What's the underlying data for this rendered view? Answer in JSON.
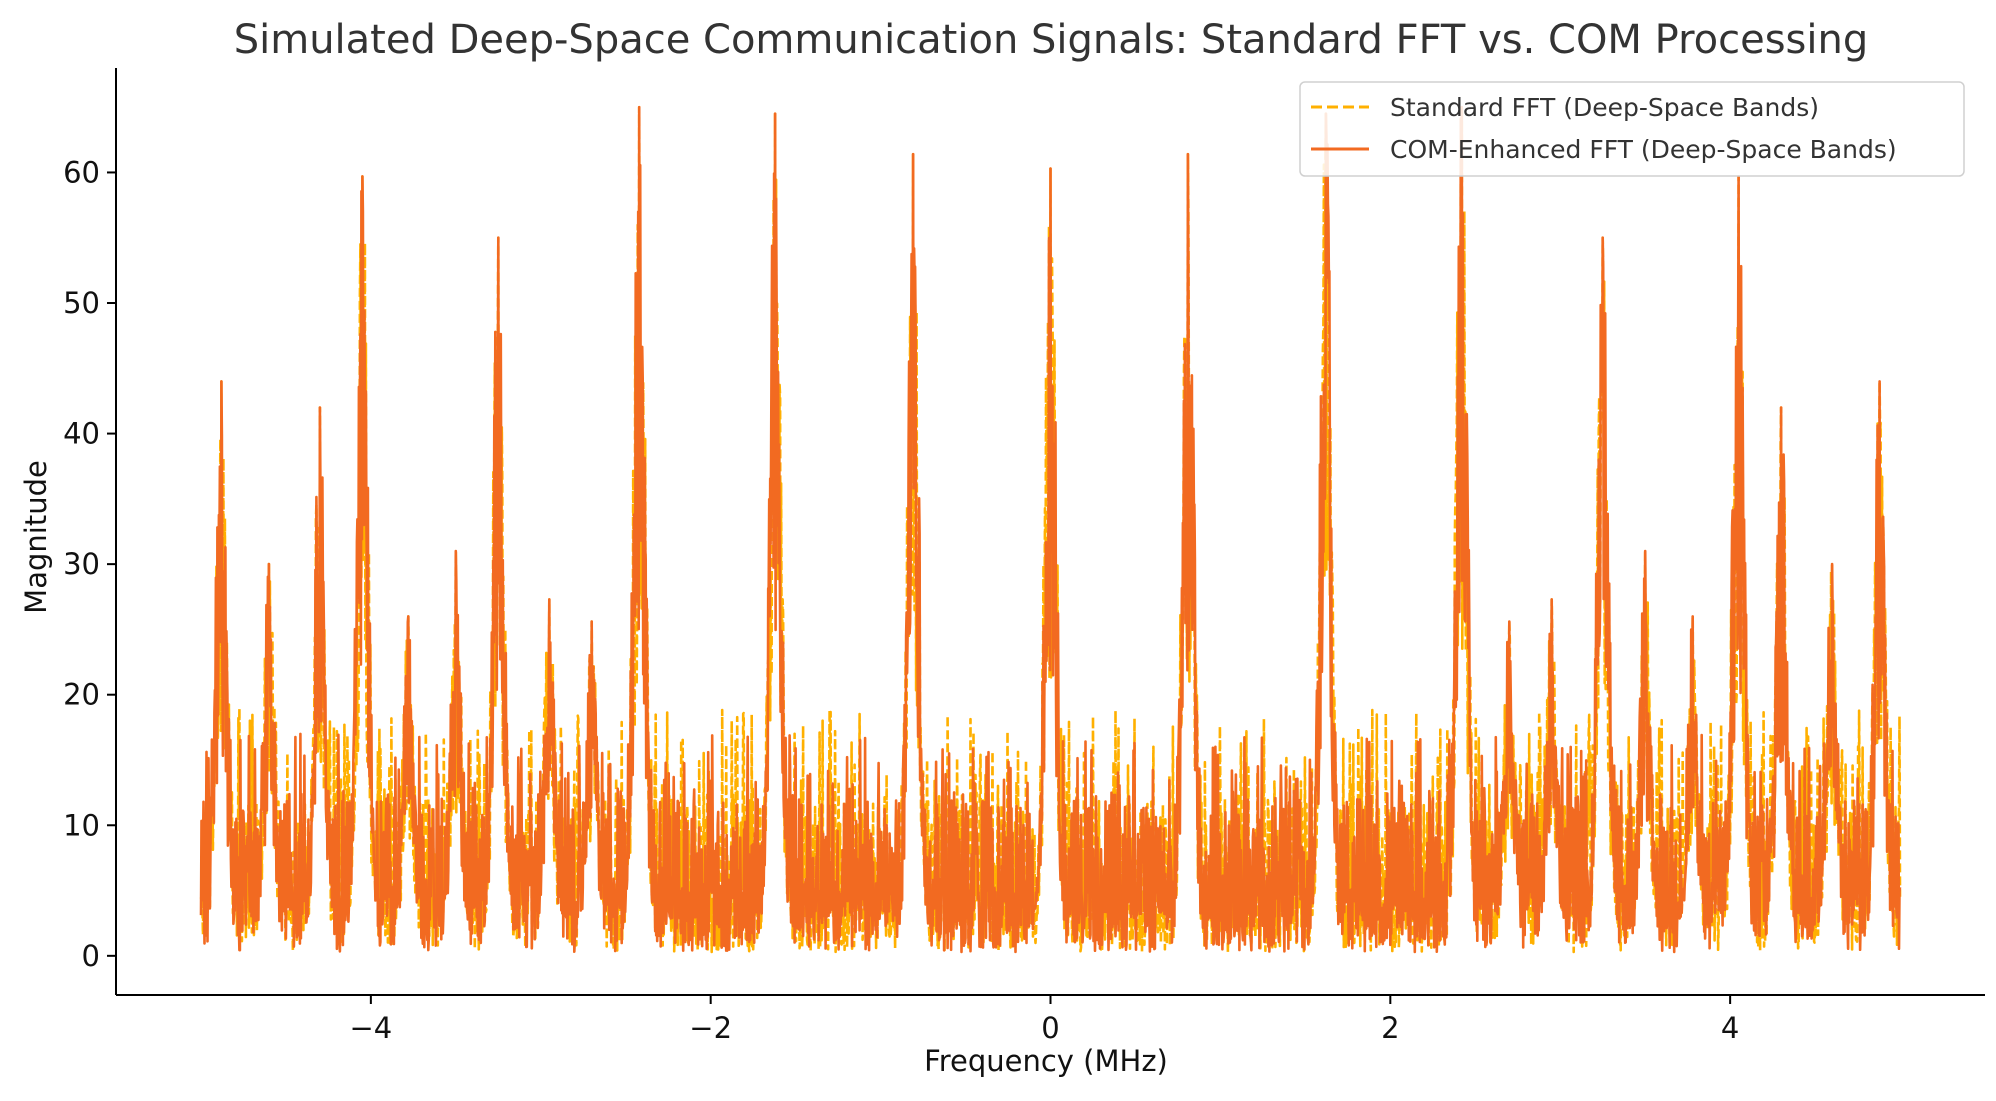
{
  "chart_data": {
    "type": "line",
    "title": "Simulated Deep-Space Communication Signals: Standard FFT vs. COM Processing",
    "xlabel": "Frequency (MHz)",
    "ylabel": "Magnitude",
    "xlim": [
      -5.5,
      5.5
    ],
    "ylim": [
      -3,
      68
    ],
    "x_ticks": [
      -4,
      -2,
      0,
      2,
      4
    ],
    "x_tick_labels": [
      "−4",
      "−2",
      "0",
      "2",
      "4"
    ],
    "y_ticks": [
      0,
      10,
      20,
      30,
      40,
      50,
      60
    ],
    "y_tick_labels": [
      "0",
      "10",
      "20",
      "30",
      "40",
      "50",
      "60"
    ],
    "grid": false,
    "legend_position": "top-right",
    "x_range": [
      -5,
      5
    ],
    "series": [
      {
        "name": "Standard FFT (Deep-Space Bands)",
        "color": "#ffb000",
        "style": "dashed",
        "noise_floor_max": 19,
        "peaks": [
          {
            "x": -4.88,
            "y": 44
          },
          {
            "x": -4.6,
            "y": 30
          },
          {
            "x": -4.3,
            "y": 42
          },
          {
            "x": -4.05,
            "y": 59.7
          },
          {
            "x": -3.78,
            "y": 26
          },
          {
            "x": -3.5,
            "y": 31
          },
          {
            "x": -3.25,
            "y": 55
          },
          {
            "x": -2.95,
            "y": 27.3
          },
          {
            "x": -2.7,
            "y": 25.6
          },
          {
            "x": -2.42,
            "y": 65
          },
          {
            "x": -1.62,
            "y": 64.5
          },
          {
            "x": -0.81,
            "y": 61.4
          },
          {
            "x": 0.0,
            "y": 60.3
          },
          {
            "x": 0.81,
            "y": 61.4
          },
          {
            "x": 1.62,
            "y": 64.5
          },
          {
            "x": 2.42,
            "y": 65
          },
          {
            "x": 2.7,
            "y": 25.6
          },
          {
            "x": 2.95,
            "y": 27.3
          },
          {
            "x": 3.25,
            "y": 55
          },
          {
            "x": 3.5,
            "y": 31
          },
          {
            "x": 3.78,
            "y": 26
          },
          {
            "x": 4.05,
            "y": 59.7
          },
          {
            "x": 4.3,
            "y": 42
          },
          {
            "x": 4.6,
            "y": 30
          },
          {
            "x": 4.88,
            "y": 44
          }
        ]
      },
      {
        "name": "COM-Enhanced FFT (Deep-Space Bands)",
        "color": "#f26a21",
        "style": "solid",
        "noise_floor_max": 17,
        "peaks": [
          {
            "x": -4.88,
            "y": 44
          },
          {
            "x": -4.6,
            "y": 30
          },
          {
            "x": -4.3,
            "y": 42
          },
          {
            "x": -4.05,
            "y": 59.7
          },
          {
            "x": -3.78,
            "y": 26
          },
          {
            "x": -3.5,
            "y": 31
          },
          {
            "x": -3.25,
            "y": 55
          },
          {
            "x": -2.95,
            "y": 27.3
          },
          {
            "x": -2.7,
            "y": 25.6
          },
          {
            "x": -2.42,
            "y": 65
          },
          {
            "x": -1.62,
            "y": 64.5
          },
          {
            "x": -0.81,
            "y": 61.4
          },
          {
            "x": 0.0,
            "y": 60.3
          },
          {
            "x": 0.81,
            "y": 61.4
          },
          {
            "x": 1.62,
            "y": 64.5
          },
          {
            "x": 2.42,
            "y": 65
          },
          {
            "x": 2.7,
            "y": 25.6
          },
          {
            "x": 2.95,
            "y": 27.3
          },
          {
            "x": 3.25,
            "y": 55
          },
          {
            "x": 3.5,
            "y": 31
          },
          {
            "x": 3.78,
            "y": 26
          },
          {
            "x": 4.05,
            "y": 59.7
          },
          {
            "x": 4.3,
            "y": 42
          },
          {
            "x": 4.6,
            "y": 30
          },
          {
            "x": 4.88,
            "y": 44
          }
        ]
      }
    ]
  }
}
